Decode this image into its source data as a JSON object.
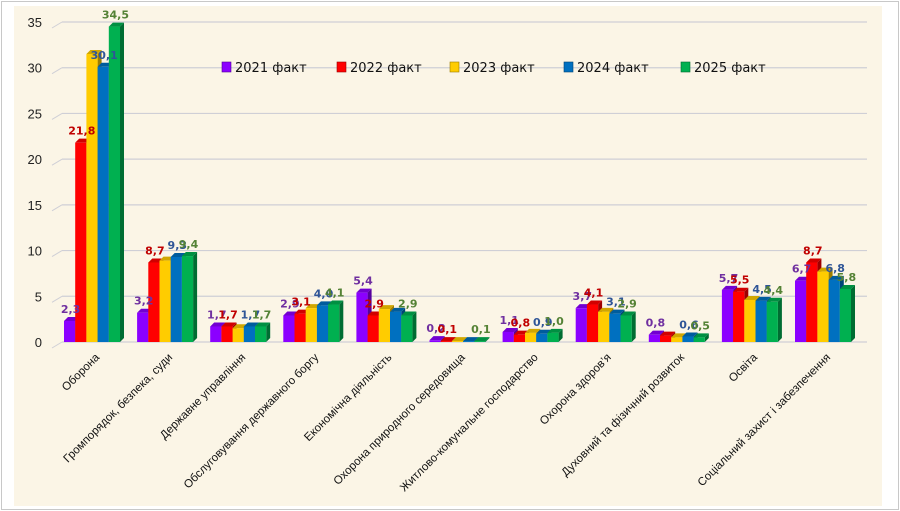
{
  "chart_data": {
    "type": "bar",
    "title": "",
    "xlabel": "",
    "ylabel": "",
    "ylim": [
      0,
      35
    ],
    "yticks": [
      0,
      5,
      10,
      15,
      20,
      25,
      30,
      35
    ],
    "grid": true,
    "legend_position": "top-right",
    "style": "3d-clustered-column",
    "categories": [
      "Оборона",
      "Громпорядок, безпека, суди",
      "Державне управління",
      "Обслуговування державного боргу",
      "Економічна діяльність",
      "Охорона природного середовища",
      "Житлово-комунальне господарство",
      "Охорона здоров’я",
      "Духовний та фізичний розвиток",
      "Освіта",
      "Соціальний захист і забезпечення"
    ],
    "series": [
      {
        "name": "2021 факт",
        "color": "#8b00ff",
        "label_color": "#7030a0",
        "values": [
          2.3,
          3.2,
          1.7,
          2.9,
          5.4,
          0.2,
          1.1,
          3.7,
          0.8,
          5.7,
          6.7
        ],
        "labels": [
          "2,3",
          "3,2",
          "1,7",
          "2,9",
          "5,4",
          "0,2",
          "1,1",
          "3,7",
          "0,8",
          "5,7",
          "6,7"
        ]
      },
      {
        "name": "2022 факт",
        "color": "#ff0000",
        "label_color": "#c00000",
        "values": [
          21.8,
          8.7,
          1.7,
          3.1,
          2.9,
          0.1,
          0.8,
          4.1,
          0.7,
          5.5,
          8.7
        ],
        "labels": [
          "21,8",
          "8,7",
          "1,7",
          "3,1",
          "2,9",
          "0,1",
          "0,8",
          "4,1",
          "",
          "5,5",
          "8,7"
        ]
      },
      {
        "name": "2023 факт",
        "color": "#ffcc00",
        "label_color": "#bf9000",
        "values": [
          31.5,
          8.9,
          1.5,
          3.7,
          3.6,
          0.1,
          1.0,
          3.3,
          0.5,
          4.6,
          7.7
        ],
        "labels": [
          "",
          "",
          "",
          "",
          "",
          "",
          "",
          "",
          "",
          "",
          ""
        ]
      },
      {
        "name": "2024 факт",
        "color": "#0070c0",
        "label_color": "#2f5597",
        "values": [
          30.1,
          9.3,
          1.7,
          4.0,
          3.3,
          0.1,
          0.9,
          3.1,
          0.6,
          4.5,
          6.8
        ],
        "labels": [
          "30,1",
          "9,3",
          "1,7",
          "4,0",
          "",
          "",
          "0,9",
          "3,1",
          "0,6",
          "4,5",
          "6,8"
        ]
      },
      {
        "name": "2025 факт",
        "color": "#00b050",
        "label_color": "#548235",
        "values": [
          34.5,
          9.4,
          1.7,
          4.1,
          2.9,
          0.1,
          1.0,
          2.9,
          0.5,
          4.4,
          5.8
        ],
        "labels": [
          "34,5",
          "9,4",
          "1,7",
          "4,1",
          "2,9",
          "0,1",
          "1,0",
          "2,9",
          "0,5",
          "4,4",
          "5,8"
        ]
      }
    ]
  }
}
